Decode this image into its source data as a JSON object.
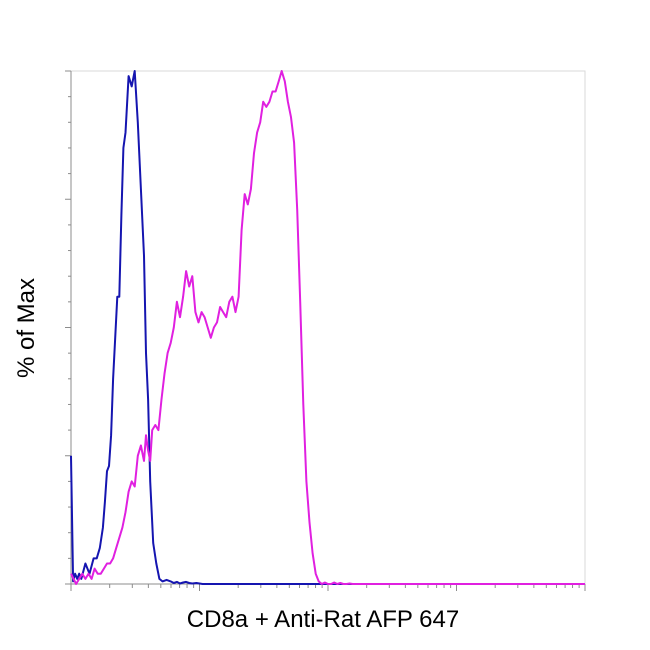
{
  "chart_data": {
    "type": "line",
    "title": "",
    "xlabel": "CD8a + Anti-Rat AFP 647",
    "ylabel": "% of Max",
    "xscale": "log",
    "xlim": [
      0,
      1
    ],
    "ylim": [
      0,
      100
    ],
    "grid": false,
    "legend": "none",
    "series": [
      {
        "color": "#1515b0",
        "x": [
          0.0,
          0.004,
          0.008,
          0.012,
          0.016,
          0.02,
          0.028,
          0.036,
          0.044,
          0.05,
          0.056,
          0.062,
          0.066,
          0.07,
          0.074,
          0.078,
          0.082,
          0.086,
          0.09,
          0.094,
          0.098,
          0.102,
          0.106,
          0.112,
          0.118,
          0.124,
          0.13,
          0.136,
          0.142,
          0.146,
          0.15,
          0.154,
          0.16,
          0.166,
          0.172,
          0.178,
          0.186,
          0.194,
          0.2,
          0.206,
          0.212,
          0.218,
          0.224,
          0.23,
          0.236,
          0.244,
          0.256,
          0.268,
          0.3,
          0.4,
          0.5,
          0.6,
          0.7,
          0.8,
          0.9,
          1.0
        ],
        "y": [
          25,
          0.5,
          2,
          1,
          2,
          1,
          4,
          2,
          5,
          5,
          7,
          11,
          16,
          22,
          23,
          29,
          40,
          48,
          56,
          56,
          72,
          85,
          88,
          99,
          97,
          100,
          90,
          77,
          64,
          45,
          36,
          20,
          8,
          4,
          1,
          0.5,
          0.8,
          0.5,
          0.2,
          0.4,
          0.1,
          0.3,
          0.4,
          0.2,
          0.1,
          0.2,
          0,
          0,
          0,
          0,
          0,
          0,
          0,
          0,
          0,
          0
        ]
      },
      {
        "color": "#e020e0",
        "x": [
          0.0,
          0.01,
          0.016,
          0.022,
          0.028,
          0.034,
          0.04,
          0.046,
          0.052,
          0.058,
          0.064,
          0.07,
          0.076,
          0.082,
          0.088,
          0.094,
          0.1,
          0.106,
          0.112,
          0.118,
          0.124,
          0.13,
          0.136,
          0.142,
          0.146,
          0.15,
          0.154,
          0.158,
          0.164,
          0.17,
          0.176,
          0.182,
          0.188,
          0.194,
          0.2,
          0.206,
          0.212,
          0.218,
          0.224,
          0.23,
          0.236,
          0.242,
          0.248,
          0.254,
          0.26,
          0.266,
          0.272,
          0.278,
          0.284,
          0.29,
          0.296,
          0.302,
          0.308,
          0.314,
          0.32,
          0.326,
          0.332,
          0.338,
          0.344,
          0.35,
          0.356,
          0.362,
          0.368,
          0.374,
          0.38,
          0.386,
          0.392,
          0.398,
          0.404,
          0.41,
          0.416,
          0.422,
          0.428,
          0.434,
          0.44,
          0.446,
          0.452,
          0.458,
          0.464,
          0.47,
          0.476,
          0.482,
          0.488,
          0.494,
          0.5,
          0.506,
          0.512,
          0.518,
          0.524,
          0.53,
          0.536,
          0.542,
          0.548,
          0.554,
          0.56,
          0.566,
          0.572,
          0.578,
          0.584,
          0.59,
          0.596,
          0.602,
          0.608,
          0.614,
          0.62,
          0.626,
          0.634,
          0.642,
          0.65,
          0.66,
          0.672,
          0.684,
          0.7,
          0.72,
          0.8,
          0.9,
          1.0
        ],
        "y": [
          2,
          0,
          1,
          2,
          1,
          2,
          1,
          3,
          2,
          2,
          3,
          4,
          4,
          5,
          7,
          9,
          11,
          14,
          18,
          20,
          19,
          25,
          27,
          24,
          29,
          26,
          24,
          30,
          31,
          30,
          36,
          41,
          45,
          47,
          50,
          55,
          52,
          56,
          61,
          58,
          60,
          53,
          51,
          53,
          52,
          50,
          48,
          50,
          51,
          54,
          53,
          52,
          55,
          56,
          53,
          56,
          69,
          76,
          74,
          77,
          84,
          88,
          90,
          94,
          93,
          94,
          96,
          96,
          98,
          100,
          98,
          94,
          91,
          86,
          73,
          55,
          35,
          20,
          12,
          6,
          2,
          0.5,
          0,
          0.3,
          0,
          0,
          0.3,
          0,
          0.2,
          0,
          0,
          0.1,
          0,
          0,
          0,
          0,
          0,
          0,
          0,
          0,
          0,
          0,
          0,
          0,
          0,
          0,
          0,
          0,
          0,
          0,
          0,
          0,
          0,
          0,
          0,
          0,
          0
        ]
      }
    ]
  }
}
